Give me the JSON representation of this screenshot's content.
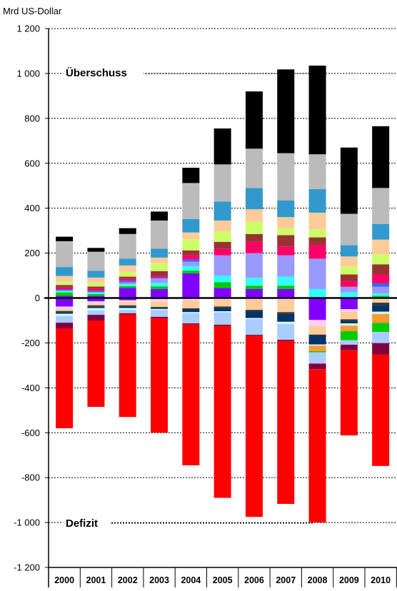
{
  "chart_data": {
    "type": "bar",
    "stacked": true,
    "unit_label": "Mrd US-Dollar",
    "title": "",
    "xlabel": "",
    "ylabel": "",
    "ylim": [
      -1200,
      1200
    ],
    "yticks": [
      1200,
      1000,
      800,
      600,
      400,
      200,
      0,
      -200,
      -400,
      -600,
      -800,
      -1000,
      -1200
    ],
    "ytick_labels": [
      "1 200",
      "1 000",
      "800",
      "600",
      "400",
      "200",
      "0",
      "-200",
      "-400",
      "-600",
      "-800",
      "-1 000",
      "-1 200"
    ],
    "gridlines": "dotted",
    "annotations": {
      "surplus": "Überschuss",
      "deficit": "Defizit"
    },
    "categories": [
      "2000",
      "2001",
      "2002",
      "2003",
      "2004",
      "2005",
      "2006",
      "2007",
      "2008",
      "2009",
      "2010"
    ],
    "totals": {
      "surplus": [
        313,
        253,
        333,
        435,
        645,
        765,
        930,
        1038,
        1060,
        695,
        775
      ],
      "deficit": [
        -580,
        -485,
        -530,
        -600,
        -745,
        -890,
        -980,
        -922,
        -1000,
        -622,
        -748
      ]
    },
    "segment_colors": [
      "#00cc00",
      "#ff0066",
      "#33ffff",
      "#3366ff",
      "#8000ff",
      "#ff9933",
      "#993333",
      "#ccff66",
      "#ffffaa",
      "#ff9999",
      "#ffcc99",
      "#9999ff",
      "#66ffcc",
      "#ff6600",
      "#ccffff",
      "#ffccff",
      "#800040",
      "#aaccff",
      "#003366",
      "#333333",
      "#996633",
      "#3399cc",
      "#bbbbbb",
      "#000000",
      "#ff0000"
    ],
    "surplus_series": [
      {
        "color": "#8000ff",
        "values": [
          10,
          10,
          45,
          40,
          110,
          45,
          40,
          40,
          0,
          0,
          0
        ]
      },
      {
        "color": "#00cc00",
        "values": [
          15,
          8,
          8,
          12,
          12,
          25,
          15,
          15,
          0,
          0,
          10
        ]
      },
      {
        "color": "#33ffff",
        "values": [
          8,
          8,
          8,
          15,
          20,
          30,
          35,
          40,
          40,
          25,
          10
        ]
      },
      {
        "color": "#9999ff",
        "values": [
          0,
          0,
          8,
          20,
          20,
          90,
          110,
          95,
          135,
          25,
          30
        ]
      },
      {
        "color": "#3366ff",
        "values": [
          5,
          5,
          8,
          5,
          10,
          0,
          0,
          0,
          0,
          0,
          15
        ]
      },
      {
        "color": "#ff0066",
        "values": [
          10,
          10,
          8,
          8,
          20,
          30,
          50,
          40,
          60,
          25,
          40
        ]
      },
      {
        "color": "#993333",
        "values": [
          10,
          10,
          10,
          20,
          20,
          30,
          35,
          50,
          35,
          30,
          45
        ]
      },
      {
        "color": "#ccff66",
        "values": [
          15,
          15,
          20,
          35,
          50,
          45,
          55,
          30,
          35,
          35,
          45
        ]
      },
      {
        "color": "#ffcc99",
        "values": [
          25,
          25,
          30,
          25,
          30,
          50,
          55,
          50,
          75,
          45,
          65
        ]
      },
      {
        "color": "#3399cc",
        "values": [
          40,
          30,
          30,
          40,
          60,
          85,
          95,
          75,
          105,
          50,
          70
        ]
      },
      {
        "color": "#bbbbbb",
        "values": [
          115,
          85,
          110,
          125,
          160,
          165,
          175,
          210,
          155,
          140,
          160
        ]
      },
      {
        "color": "#000000",
        "values": [
          20,
          17,
          26,
          40,
          68,
          160,
          255,
          373,
          395,
          295,
          275
        ]
      }
    ],
    "deficit_series": [
      {
        "color": "#8000ff",
        "values": [
          -38,
          -15,
          -10,
          -5,
          -3,
          -3,
          -3,
          -3,
          -98,
          -50,
          -3
        ]
      },
      {
        "color": "#ffccff",
        "values": [
          -10,
          -10,
          -8,
          -10,
          -8,
          -5,
          -5,
          -5,
          -27,
          -10,
          -5
        ]
      },
      {
        "color": "#ffcc99",
        "values": [
          -10,
          -8,
          -15,
          -25,
          -35,
          -30,
          -45,
          -55,
          -38,
          -35,
          -13
        ]
      },
      {
        "color": "#333333",
        "values": [
          -6,
          -6,
          -6,
          -4,
          -5,
          -6,
          -6,
          -8,
          -4,
          -8,
          -10
        ]
      },
      {
        "color": "#003366",
        "values": [
          -6,
          -6,
          -6,
          -5,
          -12,
          -15,
          -30,
          -35,
          -40,
          -10,
          -30
        ]
      },
      {
        "color": "#ccffff",
        "values": [
          -10,
          -10,
          -8,
          -5,
          -5,
          -5,
          -5,
          -10,
          -5,
          -10,
          -10
        ]
      },
      {
        "color": "#ff9933",
        "values": [
          0,
          0,
          0,
          0,
          0,
          0,
          0,
          0,
          -25,
          -25,
          -40
        ]
      },
      {
        "color": "#00cc00",
        "values": [
          0,
          0,
          0,
          0,
          0,
          0,
          0,
          0,
          -5,
          -40,
          -40
        ]
      },
      {
        "color": "#aaccff",
        "values": [
          -30,
          -20,
          -15,
          -30,
          -45,
          -55,
          -70,
          -70,
          -50,
          -20,
          -50
        ]
      },
      {
        "color": "#800040",
        "values": [
          -25,
          -25,
          -5,
          -5,
          -5,
          -5,
          -5,
          -5,
          -25,
          -25,
          -50
        ]
      },
      {
        "color": "#ff0000",
        "values": [
          -445,
          -385,
          -457,
          -511,
          -627,
          -766,
          -806,
          -726,
          -683,
          -379,
          -497
        ]
      }
    ]
  }
}
